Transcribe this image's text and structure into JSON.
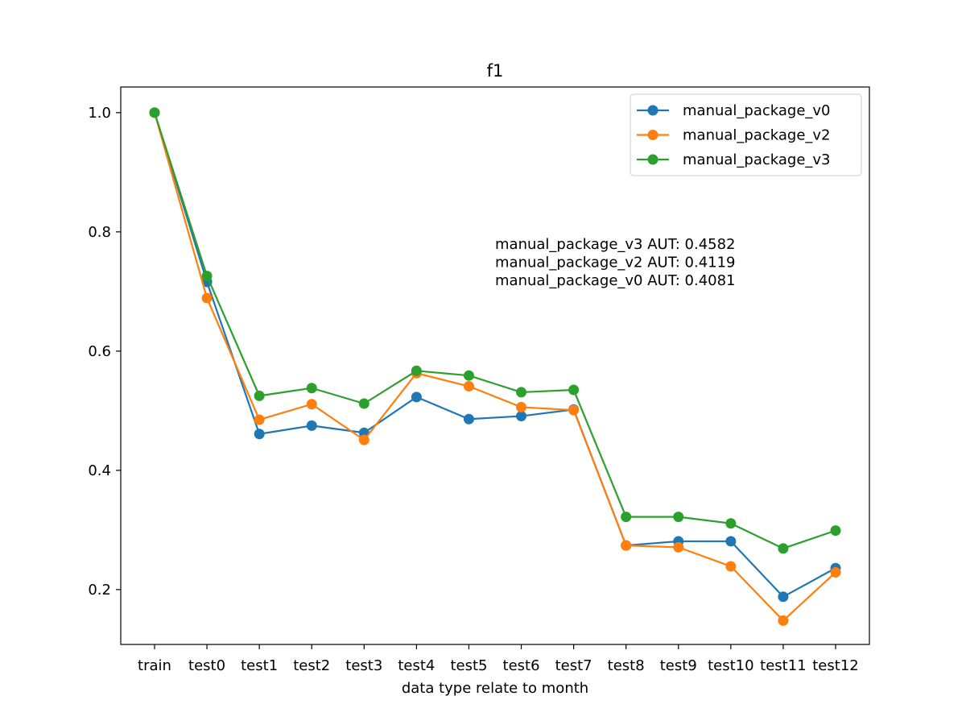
{
  "chart_data": {
    "type": "line",
    "title": "f1",
    "xlabel": "data type relate to month",
    "ylabel": "",
    "categories": [
      "train",
      "test0",
      "test1",
      "test2",
      "test3",
      "test4",
      "test5",
      "test6",
      "test7",
      "test8",
      "test9",
      "test10",
      "test11",
      "test12"
    ],
    "ylim": [
      0.108,
      1.043
    ],
    "yticks": [
      0.2,
      0.4,
      0.6,
      0.8,
      1.0
    ],
    "ytick_labels": [
      "0.2",
      "0.4",
      "0.6",
      "0.8",
      "1.0"
    ],
    "grid": false,
    "legend_position": "top-right",
    "series": [
      {
        "name": "manual_package_v0",
        "color": "#1f77b4",
        "marker": "circle",
        "values": [
          1.0,
          0.716,
          0.461,
          0.475,
          0.463,
          0.523,
          0.486,
          0.491,
          0.502,
          0.274,
          0.281,
          0.281,
          0.188,
          0.236
        ]
      },
      {
        "name": "manual_package_v2",
        "color": "#ff7f0e",
        "marker": "circle",
        "values": [
          1.0,
          0.689,
          0.485,
          0.511,
          0.451,
          0.563,
          0.541,
          0.506,
          0.501,
          0.274,
          0.271,
          0.239,
          0.148,
          0.229
        ]
      },
      {
        "name": "manual_package_v3",
        "color": "#2ca02c",
        "marker": "circle",
        "values": [
          1.0,
          0.726,
          0.525,
          0.538,
          0.512,
          0.567,
          0.559,
          0.531,
          0.535,
          0.322,
          0.322,
          0.311,
          0.269,
          0.299
        ]
      }
    ],
    "annotations": [
      "manual_package_v3 AUT: 0.4582",
      "manual_package_v2 AUT: 0.4119",
      "manual_package_v0 AUT: 0.4081"
    ]
  }
}
